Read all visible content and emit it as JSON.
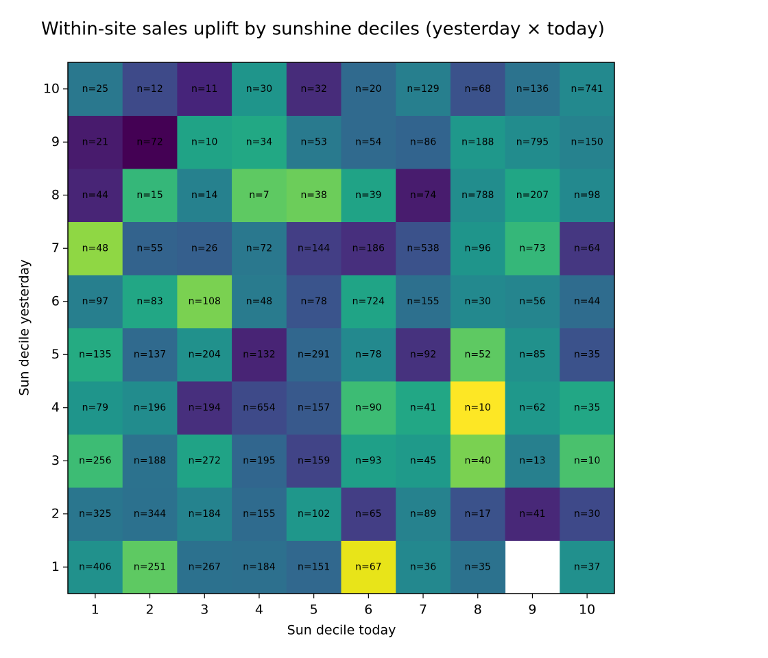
{
  "chart_data": {
    "type": "heatmap",
    "title": "Within-site sales uplift by sunshine deciles (yesterday × today)",
    "x_label": "Sun decile today",
    "y_label": "Sun decile yesterday",
    "categories": [
      1,
      2,
      3,
      4,
      5,
      6,
      7,
      8,
      9,
      10
    ],
    "y_categories": [
      1,
      2,
      3,
      4,
      5,
      6,
      7,
      8,
      9,
      10
    ],
    "values": [
      [
        406,
        251,
        267,
        184,
        151,
        67,
        36,
        35,
        null,
        37
      ],
      [
        325,
        344,
        184,
        155,
        102,
        65,
        89,
        17,
        41,
        30
      ],
      [
        256,
        188,
        272,
        195,
        159,
        93,
        45,
        40,
        13,
        10
      ],
      [
        79,
        196,
        194,
        654,
        157,
        90,
        41,
        10,
        62,
        35
      ],
      [
        135,
        137,
        204,
        132,
        291,
        78,
        92,
        52,
        85,
        35
      ],
      [
        97,
        83,
        108,
        48,
        78,
        724,
        155,
        30,
        56,
        44
      ],
      [
        48,
        55,
        26,
        72,
        144,
        186,
        538,
        96,
        73,
        64
      ],
      [
        44,
        15,
        14,
        7,
        38,
        39,
        74,
        788,
        207,
        98
      ],
      [
        21,
        72,
        10,
        34,
        53,
        54,
        86,
        188,
        795,
        150
      ],
      [
        25,
        12,
        11,
        30,
        32,
        20,
        129,
        68,
        136,
        741
      ]
    ],
    "value_labels": [
      [
        "n=406",
        "n=251",
        "n=267",
        "n=184",
        "n=151",
        "n=67",
        "n=36",
        "n=35",
        null,
        "n=37"
      ],
      [
        "n=325",
        "n=344",
        "n=184",
        "n=155",
        "n=102",
        "n=65",
        "n=89",
        "n=17",
        "n=41",
        "n=30"
      ],
      [
        "n=256",
        "n=188",
        "n=272",
        "n=195",
        "n=159",
        "n=93",
        "n=45",
        "n=40",
        "n=13",
        "n=10"
      ],
      [
        "n=79",
        "n=196",
        "n=194",
        "n=654",
        "n=157",
        "n=90",
        "n=41",
        "n=10",
        "n=62",
        "n=35"
      ],
      [
        "n=135",
        "n=137",
        "n=204",
        "n=132",
        "n=291",
        "n=78",
        "n=92",
        "n=52",
        "n=85",
        "n=35"
      ],
      [
        "n=97",
        "n=83",
        "n=108",
        "n=48",
        "n=78",
        "n=724",
        "n=155",
        "n=30",
        "n=56",
        "n=44"
      ],
      [
        "n=48",
        "n=55",
        "n=26",
        "n=72",
        "n=144",
        "n=186",
        "n=538",
        "n=96",
        "n=73",
        "n=64"
      ],
      [
        "n=44",
        "n=15",
        "n=14",
        "n=7",
        "n=38",
        "n=39",
        "n=74",
        "n=788",
        "n=207",
        "n=98"
      ],
      [
        "n=21",
        "n=72",
        "n=10",
        "n=34",
        "n=53",
        "n=54",
        "n=86",
        "n=188",
        "n=795",
        "n=150"
      ],
      [
        "n=25",
        "n=12",
        "n=11",
        "n=30",
        "n=32",
        "n=20",
        "n=129",
        "n=68",
        "n=136",
        "n=741"
      ]
    ],
    "colors": [
      [
        "#21918c",
        "#5ec962",
        "#2c718e",
        "#2d708e",
        "#31688e",
        "#e8e419",
        "#23888e",
        "#2c728e",
        null,
        "#21908d"
      ],
      [
        "#2a768e",
        "#2c718e",
        "#25838e",
        "#2f6b8e",
        "#1f978b",
        "#433e85",
        "#26828e",
        "#3b528b",
        "#482878",
        "#3e4989"
      ],
      [
        "#3dbc74",
        "#2c728e",
        "#20a386",
        "#31668e",
        "#414487",
        "#1fa088",
        "#1f9a8a",
        "#7ad151",
        "#27808e",
        "#4ac16d"
      ],
      [
        "#1f958b",
        "#228c8d",
        "#472f7d",
        "#3e4a89",
        "#38598c",
        "#3dbc74",
        "#22a785",
        "#fde725",
        "#1f988b",
        "#22a785"
      ],
      [
        "#25ab82",
        "#306a8e",
        "#21918c",
        "#482475",
        "#31678e",
        "#23898e",
        "#46327e",
        "#5ec962",
        "#21918c",
        "#3b528b"
      ],
      [
        "#277f8e",
        "#22a785",
        "#7ad151",
        "#297b8e",
        "#3a548c",
        "#20a486",
        "#2d708e",
        "#23898e",
        "#25858e",
        "#2f6c8e"
      ],
      [
        "#8fd744",
        "#33638d",
        "#355f8d",
        "#2a788e",
        "#433e85",
        "#472f7d",
        "#3b528b",
        "#1f958b",
        "#35b779",
        "#453781"
      ],
      [
        "#482576",
        "#35b779",
        "#26818e",
        "#5ec962",
        "#6ccd5a",
        "#20a386",
        "#481c6e",
        "#228d8d",
        "#21a685",
        "#23898e"
      ],
      [
        "#481b6d",
        "#440154",
        "#20a386",
        "#22a884",
        "#297a8e",
        "#306a8e",
        "#32648e",
        "#1f988b",
        "#228c8d",
        "#26828e"
      ],
      [
        "#2a788e",
        "#3e4a89",
        "#46247a",
        "#1f958b",
        "#472c7a",
        "#306a8e",
        "#277f8e",
        "#3b528b",
        "#2c738e",
        "#23898e"
      ]
    ]
  }
}
